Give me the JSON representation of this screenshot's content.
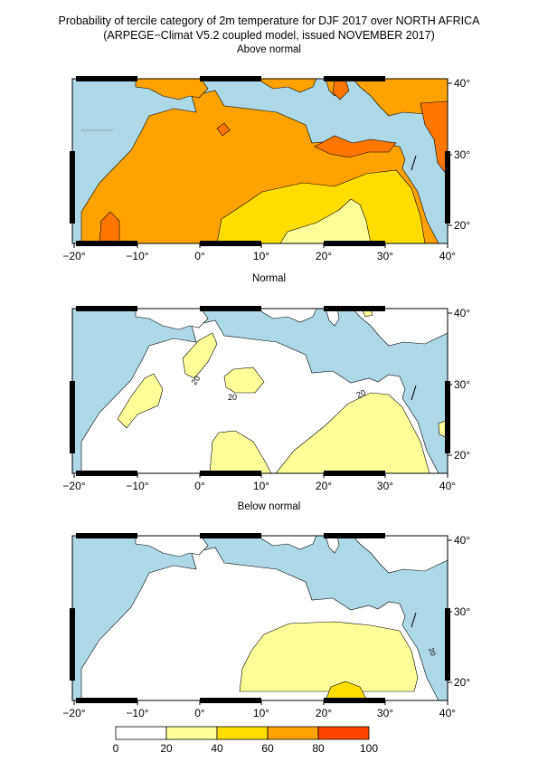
{
  "title": {
    "line1": "Probability of tercile category of 2m temperature for DJF 2017 over NORTH AFRICA",
    "line2": "(ARPEGE−Climat V5.2 coupled model, issued NOVEMBER  2017)"
  },
  "panels": [
    {
      "title": "Above normal",
      "contour_labels": []
    },
    {
      "title": "Normal",
      "contour_labels": [
        "20",
        "20",
        "20"
      ]
    },
    {
      "title": "Below normal",
      "contour_labels": [
        "20"
      ]
    }
  ],
  "axes": {
    "x_ticks": [
      "−20°",
      "−10°",
      "0°",
      "10°",
      "20°",
      "30°",
      "40°"
    ],
    "y_ticks": [
      "20°",
      "30°",
      "40°"
    ]
  },
  "legend": {
    "labels": [
      "0",
      "20",
      "40",
      "60",
      "80",
      "100"
    ],
    "colors": [
      "#ffffff",
      "#ffff99",
      "#ffdd00",
      "#ffa200",
      "#ff7700",
      "#ff4500"
    ]
  },
  "colors": {
    "sea": "#add8e6",
    "land_white": "#ffffff"
  }
}
